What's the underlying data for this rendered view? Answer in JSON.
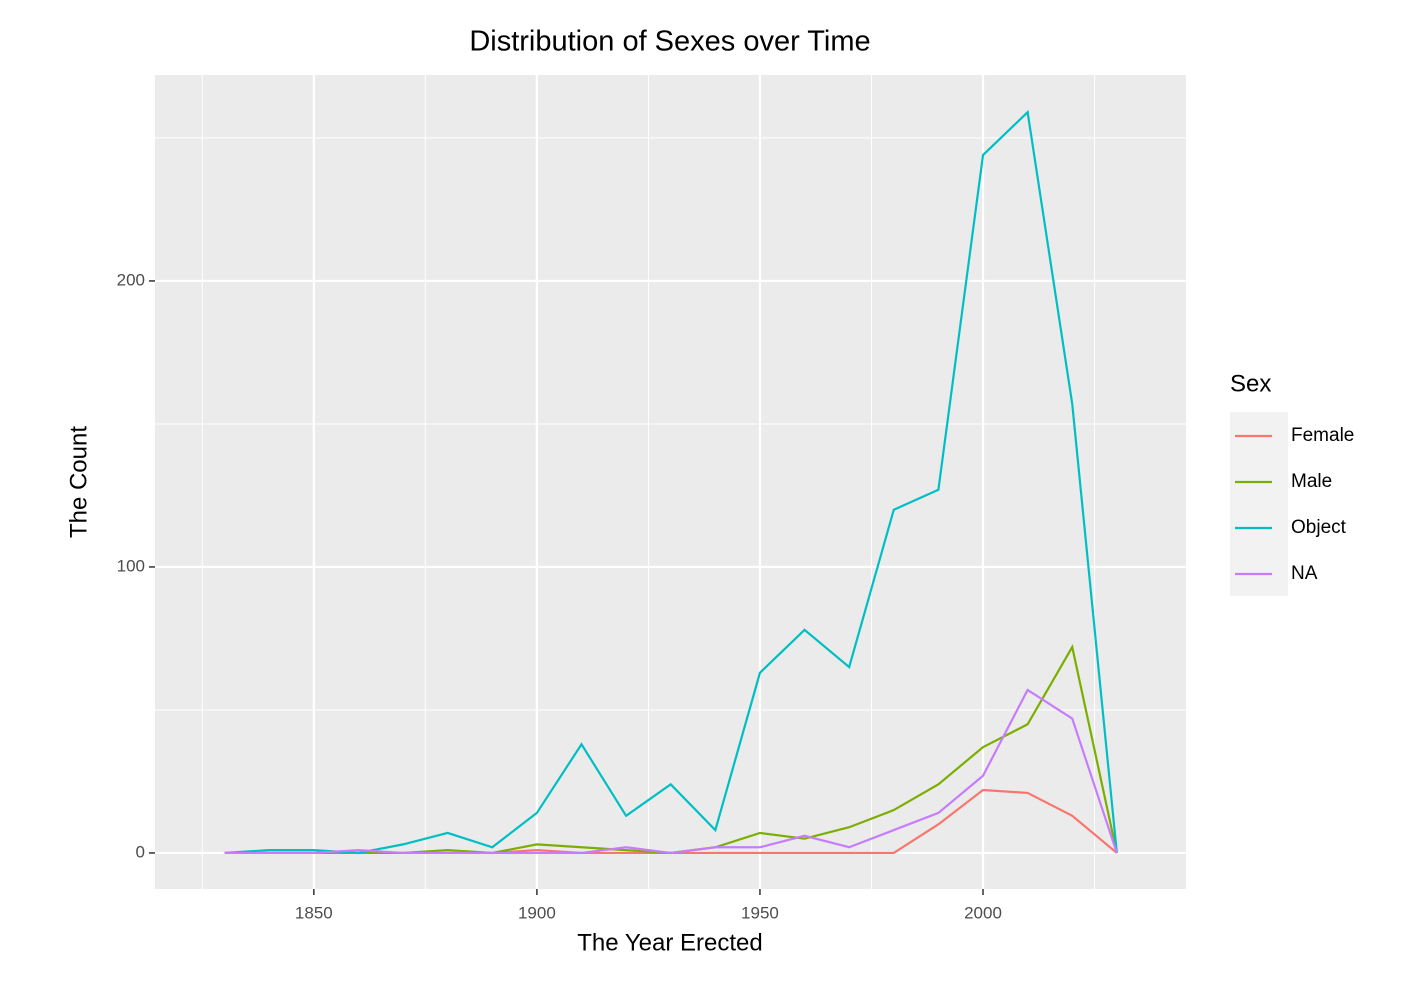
{
  "chart_data": {
    "type": "line",
    "title": "Distribution of Sexes over Time",
    "x_label": "The Year Erected",
    "y_label": "The Count",
    "legend_title": "Sex",
    "x": [
      1830,
      1840,
      1850,
      1860,
      1870,
      1880,
      1890,
      1900,
      1910,
      1920,
      1930,
      1940,
      1950,
      1960,
      1970,
      1980,
      1990,
      2000,
      2010,
      2020,
      2030
    ],
    "series": [
      {
        "name": "Female",
        "color": "#F8766D",
        "values": [
          0,
          0,
          0,
          0,
          0,
          0,
          0,
          1,
          0,
          0,
          0,
          0,
          0,
          0,
          0,
          0,
          10,
          22,
          21,
          13,
          0
        ]
      },
      {
        "name": "Male",
        "color": "#7CAE00",
        "values": [
          0,
          0,
          0,
          0,
          0,
          1,
          0,
          3,
          2,
          1,
          0,
          2,
          7,
          5,
          9,
          15,
          24,
          37,
          45,
          72,
          0
        ]
      },
      {
        "name": "Object",
        "color": "#00BFC4",
        "values": [
          0,
          1,
          1,
          0,
          3,
          7,
          2,
          14,
          38,
          13,
          24,
          8,
          63,
          78,
          65,
          120,
          127,
          244,
          259,
          157,
          0
        ]
      },
      {
        "name": "NA",
        "color": "#C77CFF",
        "values": [
          0,
          0,
          0,
          1,
          0,
          0,
          0,
          0,
          0,
          2,
          0,
          2,
          2,
          6,
          2,
          8,
          14,
          27,
          57,
          47,
          0
        ]
      }
    ],
    "xlim": [
      1814.4,
      2045.5
    ],
    "xticks": [
      1850,
      1900,
      1950,
      2000
    ],
    "minor_xticks": [
      1825,
      1875,
      1925,
      1975,
      2025
    ],
    "ylim": [
      -12.6,
      272
    ],
    "yticks": [
      0,
      100,
      200
    ],
    "minor_yticks": [
      50,
      150,
      250
    ],
    "grid": true,
    "legend_position": "right"
  }
}
